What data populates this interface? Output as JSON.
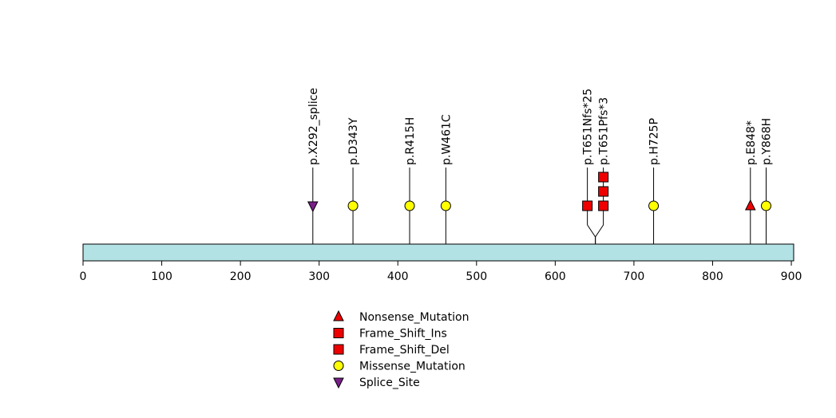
{
  "chart_data": {
    "type": "lollipop",
    "protein_length": 903,
    "xlim": [
      0,
      903
    ],
    "x_ticks": [
      0,
      100,
      200,
      300,
      400,
      500,
      600,
      700,
      800,
      900
    ],
    "track_color": "#b2e2e4",
    "stem_color": "#000000",
    "mutations": [
      {
        "label": "p.X292_splice",
        "position": 292,
        "type": "Splice_Site",
        "count": 1,
        "lane": 0
      },
      {
        "label": "p.D343Y",
        "position": 343,
        "type": "Missense_Mutation",
        "count": 1,
        "lane": 0
      },
      {
        "label": "p.R415H",
        "position": 415,
        "type": "Missense_Mutation",
        "count": 1,
        "lane": 0
      },
      {
        "label": "p.W461C",
        "position": 461,
        "type": "Missense_Mutation",
        "count": 1,
        "lane": 0
      },
      {
        "label": "p.T651Nfs*25",
        "position": 651,
        "type": "Frame_Shift_Ins",
        "count": 1,
        "lane": -1
      },
      {
        "label": "p.T651Pfs*3",
        "position": 651,
        "type": "Frame_Shift_Del",
        "count": 3,
        "lane": 1
      },
      {
        "label": "p.H725P",
        "position": 725,
        "type": "Missense_Mutation",
        "count": 1,
        "lane": 0
      },
      {
        "label": "p.E848*",
        "position": 848,
        "type": "Nonsense_Mutation",
        "count": 1,
        "lane": 0
      },
      {
        "label": "p.Y868H",
        "position": 868,
        "type": "Missense_Mutation",
        "count": 1,
        "lane": 0
      }
    ],
    "legend": [
      {
        "label": "Nonsense_Mutation",
        "shape": "triangle-up",
        "color": "#ee0000"
      },
      {
        "label": "Frame_Shift_Ins",
        "shape": "square",
        "color": "#ee0000"
      },
      {
        "label": "Frame_Shift_Del",
        "shape": "square",
        "color": "#ee0000"
      },
      {
        "label": "Missense_Mutation",
        "shape": "circle",
        "color": "#ffff00"
      },
      {
        "label": "Splice_Site",
        "shape": "triangle-down",
        "color": "#7a1f8a"
      }
    ]
  }
}
